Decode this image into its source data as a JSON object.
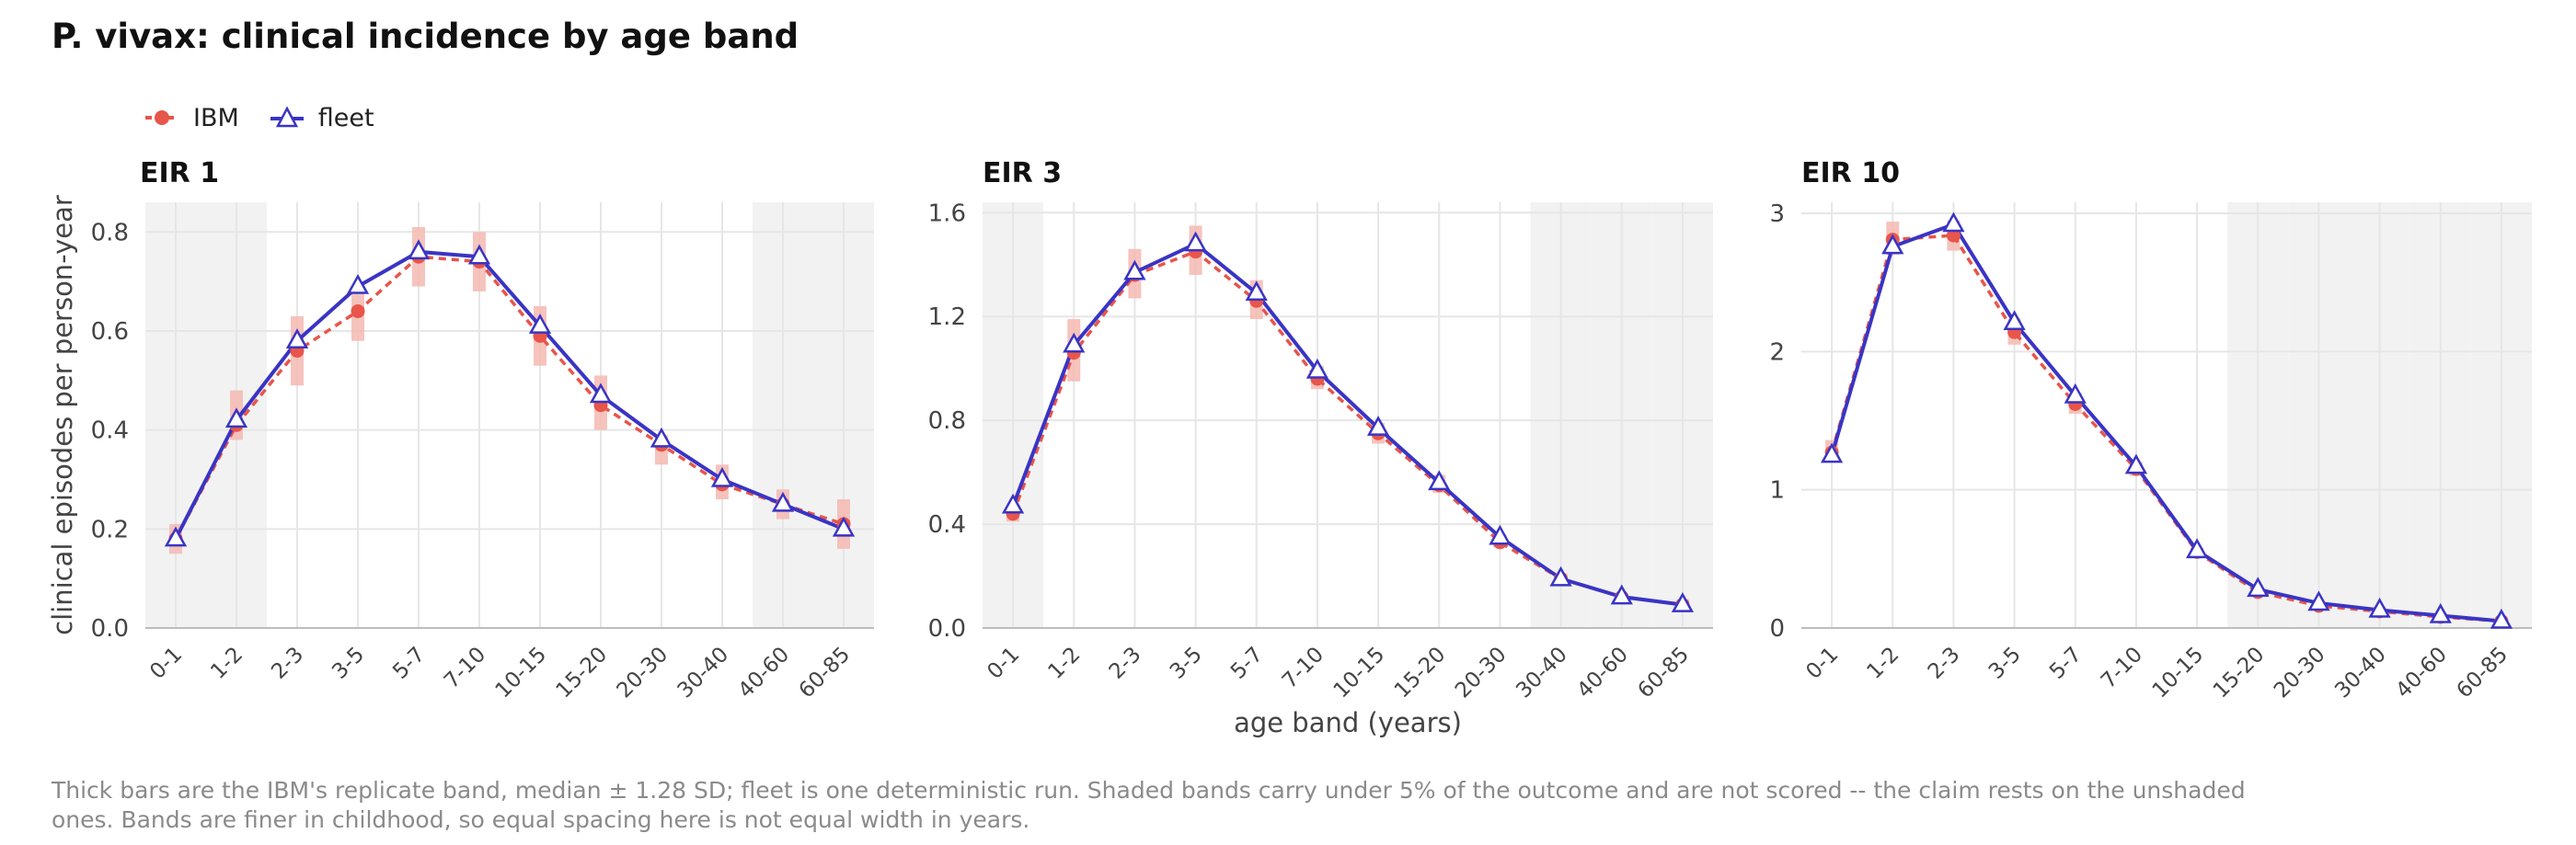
{
  "title": "P. vivax: clinical incidence by age band",
  "legend": {
    "items": [
      {
        "label": "IBM",
        "color": "#e8554a",
        "marker": "circle",
        "linestyle": "dashed"
      },
      {
        "label": "fleet",
        "color": "#3a34c4",
        "marker": "triangle",
        "linestyle": "solid"
      }
    ]
  },
  "caption": "Thick bars are the IBM's replicate band, median ± 1.28 SD; fleet is one deterministic run. Shaded bands carry under 5% of the outcome and are not scored -- the claim rests on the unshaded ones. Bands are finer in childhood, so equal spacing here is not equal width in years.",
  "colors": {
    "ibm": "#e8554a",
    "ibm_band": "#f5b8b2",
    "fleet": "#3a34c4",
    "shade": "#f2f2f2",
    "grid": "#e6e6e6"
  },
  "chart_data": [
    {
      "type": "line",
      "title": "EIR 1",
      "ylabel": "clinical episodes per person-year",
      "xlabel": "",
      "categories": [
        "0-1",
        "1-2",
        "2-3",
        "3-5",
        "5-7",
        "7-10",
        "10-15",
        "15-20",
        "20-30",
        "30-40",
        "40-60",
        "60-85"
      ],
      "ylim": [
        0,
        0.86
      ],
      "yticks": [
        0.0,
        0.2,
        0.4,
        0.6,
        0.8
      ],
      "ytick_labels": [
        "0.0",
        "0.2",
        "0.4",
        "0.6",
        "0.8"
      ],
      "shaded_categories": [
        "0-1",
        "1-2",
        "40-60",
        "60-85"
      ],
      "grid": true,
      "series": [
        {
          "name": "IBM",
          "values": [
            0.18,
            0.41,
            0.56,
            0.64,
            0.75,
            0.74,
            0.59,
            0.45,
            0.37,
            0.29,
            0.25,
            0.21
          ],
          "band_low": [
            0.15,
            0.38,
            0.49,
            0.58,
            0.69,
            0.68,
            0.53,
            0.4,
            0.33,
            0.26,
            0.22,
            0.16
          ],
          "band_high": [
            0.21,
            0.48,
            0.63,
            0.68,
            0.81,
            0.8,
            0.65,
            0.51,
            0.39,
            0.33,
            0.28,
            0.26
          ]
        },
        {
          "name": "fleet",
          "values": [
            0.18,
            0.42,
            0.58,
            0.69,
            0.76,
            0.75,
            0.61,
            0.47,
            0.38,
            0.3,
            0.25,
            0.2
          ]
        }
      ]
    },
    {
      "type": "line",
      "title": "EIR 3",
      "ylabel": "",
      "xlabel": "age band (years)",
      "categories": [
        "0-1",
        "1-2",
        "2-3",
        "3-5",
        "5-7",
        "7-10",
        "10-15",
        "15-20",
        "20-30",
        "30-40",
        "40-60",
        "60-85"
      ],
      "ylim": [
        0,
        1.64
      ],
      "yticks": [
        0.0,
        0.4,
        0.8,
        1.2,
        1.6
      ],
      "ytick_labels": [
        "0.0",
        "0.4",
        "0.8",
        "1.2",
        "1.6"
      ],
      "shaded_categories": [
        "0-1",
        "30-40",
        "40-60",
        "60-85"
      ],
      "grid": true,
      "series": [
        {
          "name": "IBM",
          "values": [
            0.44,
            1.06,
            1.36,
            1.45,
            1.26,
            0.96,
            0.75,
            0.55,
            0.33,
            0.19,
            0.12,
            0.09
          ],
          "band_low": [
            0.41,
            0.95,
            1.27,
            1.36,
            1.19,
            0.92,
            0.71,
            0.52,
            0.31,
            0.18,
            0.11,
            0.08
          ],
          "band_high": [
            0.47,
            1.19,
            1.46,
            1.55,
            1.34,
            1.01,
            0.79,
            0.59,
            0.36,
            0.21,
            0.13,
            0.11
          ]
        },
        {
          "name": "fleet",
          "values": [
            0.47,
            1.09,
            1.37,
            1.48,
            1.29,
            0.99,
            0.77,
            0.56,
            0.35,
            0.19,
            0.12,
            0.09
          ]
        }
      ]
    },
    {
      "type": "line",
      "title": "EIR 10",
      "ylabel": "",
      "xlabel": "",
      "categories": [
        "0-1",
        "1-2",
        "2-3",
        "3-5",
        "5-7",
        "7-10",
        "10-15",
        "15-20",
        "20-30",
        "30-40",
        "40-60",
        "60-85"
      ],
      "ylim": [
        0,
        3.08
      ],
      "yticks": [
        0,
        1,
        2,
        3
      ],
      "ytick_labels": [
        "0",
        "1",
        "2",
        "3"
      ],
      "shaded_categories": [
        "15-20",
        "20-30",
        "30-40",
        "40-60",
        "60-85"
      ],
      "grid": true,
      "series": [
        {
          "name": "IBM",
          "values": [
            1.27,
            2.81,
            2.84,
            2.14,
            1.62,
            1.15,
            0.55,
            0.26,
            0.16,
            0.12,
            0.08,
            0.05
          ],
          "band_low": [
            1.2,
            2.7,
            2.73,
            2.05,
            1.55,
            1.1,
            0.52,
            0.24,
            0.14,
            0.11,
            0.07,
            0.04
          ],
          "band_high": [
            1.36,
            2.94,
            2.95,
            2.24,
            1.7,
            1.2,
            0.58,
            0.29,
            0.18,
            0.14,
            0.09,
            0.06
          ]
        },
        {
          "name": "fleet",
          "values": [
            1.25,
            2.76,
            2.92,
            2.21,
            1.68,
            1.17,
            0.56,
            0.28,
            0.18,
            0.13,
            0.09,
            0.05
          ]
        }
      ]
    }
  ]
}
